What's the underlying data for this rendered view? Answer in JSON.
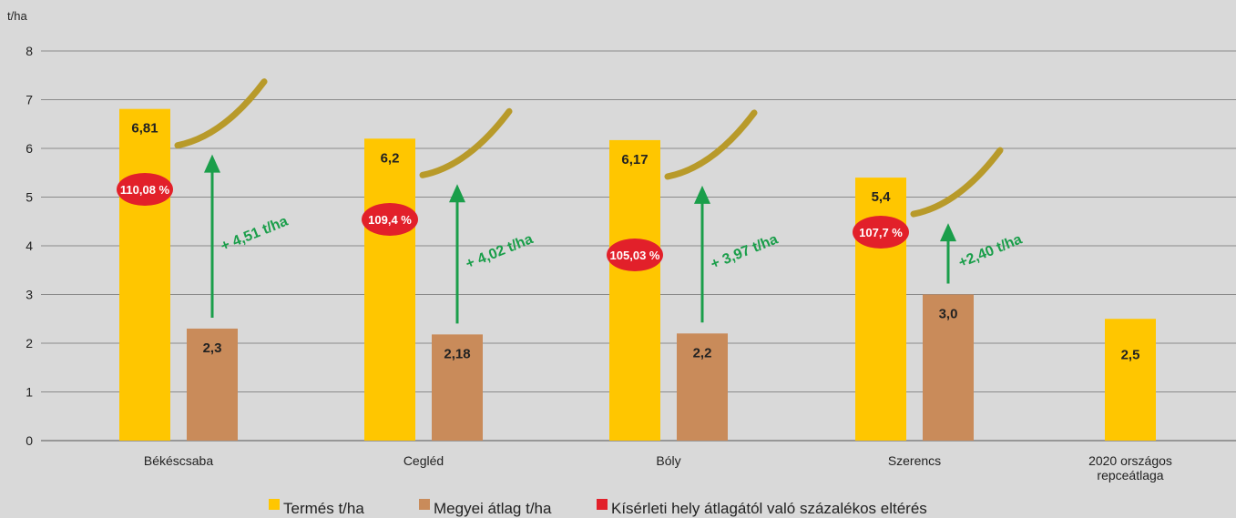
{
  "chart_data": {
    "type": "bar",
    "y_label": "t/ha",
    "ylim": [
      0,
      8
    ],
    "yticks": [
      0,
      1,
      2,
      3,
      4,
      5,
      6,
      7,
      8
    ],
    "grid": true,
    "categories": [
      "Békéscsaba",
      "Cegléd",
      "Bóly",
      "Szerencs",
      "2020 országos repceátlaga"
    ],
    "series": [
      {
        "name": "Termés t/ha",
        "color": "#ffc600",
        "values": [
          6.81,
          6.2,
          6.17,
          5.4,
          2.5
        ],
        "value_labels": [
          "6,81",
          "6,2",
          "6,17",
          "5,4",
          "2,5"
        ]
      },
      {
        "name": "Megyei átlag t/ha",
        "color": "#c98b5a",
        "values": [
          2.3,
          2.18,
          2.2,
          3.0,
          null
        ],
        "value_labels": [
          "2,3",
          "2,18",
          "2,2",
          "3,0",
          null
        ]
      },
      {
        "name": "Kísérleti hely átlagától való százalékos eltérés",
        "color": "#e2202a",
        "values": [
          110.08,
          109.4,
          105.03,
          107.7,
          null
        ],
        "value_labels": [
          "110,08 %",
          "109,4 %",
          "105,03 %",
          "107,7 %",
          null
        ]
      }
    ],
    "annotations": [
      "+ 4,51 t/ha",
      "+ 4,02 t/ha",
      "+ 3,97 t/ha",
      "+2,40 t/ha"
    ],
    "annotation_color": "#1a9e4a"
  }
}
